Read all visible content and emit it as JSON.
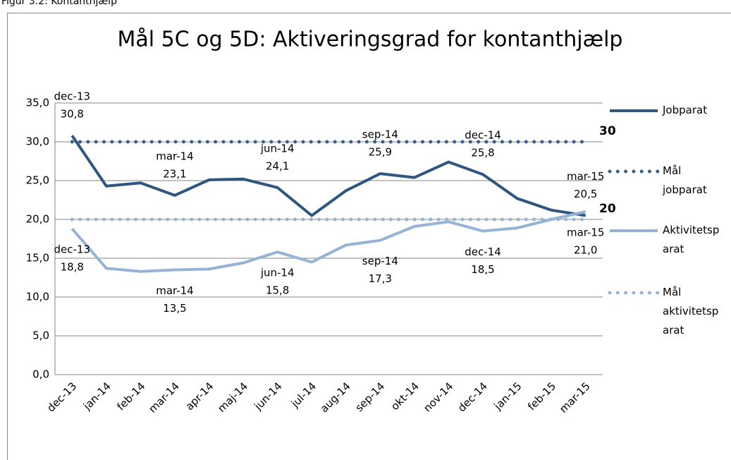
{
  "chart_data": {
    "type": "line",
    "caption": "Figur 3.2: Kontanthjælp",
    "title": "Mål 5C og 5D: Aktiveringsgrad for kontanthjælp",
    "categories": [
      "dec-13",
      "jan-14",
      "feb-14",
      "mar-14",
      "apr-14",
      "maj-14",
      "jun-14",
      "jul-14",
      "aug-14",
      "sep-14",
      "okt-14",
      "nov-14",
      "dec-14",
      "jan-15",
      "feb-15",
      "mar-15"
    ],
    "series": [
      {
        "name": "Jobparat",
        "color": "#2f5680",
        "style": "solid",
        "values": [
          30.8,
          24.3,
          24.7,
          23.1,
          25.1,
          25.2,
          24.1,
          20.5,
          23.7,
          25.9,
          25.4,
          27.4,
          25.8,
          22.7,
          21.2,
          20.5
        ],
        "value_labels": [
          "30,8",
          null,
          null,
          "23,1",
          null,
          null,
          "24,1",
          null,
          null,
          "25,9",
          null,
          null,
          "25,8",
          null,
          null,
          "20,5"
        ]
      },
      {
        "name": "Mål jobparat",
        "color": "#375f8c",
        "style": "dotted",
        "values": [
          30,
          30,
          30,
          30,
          30,
          30,
          30,
          30,
          30,
          30,
          30,
          30,
          30,
          30,
          30,
          30
        ]
      },
      {
        "name": "Aktivitetsparat",
        "color": "#95b3d7",
        "style": "solid",
        "values": [
          18.8,
          13.7,
          13.3,
          13.5,
          13.6,
          14.4,
          15.8,
          14.5,
          16.7,
          17.3,
          19.1,
          19.7,
          18.5,
          18.9,
          20.0,
          21.0
        ],
        "value_labels": [
          "18,8",
          null,
          null,
          "13,5",
          null,
          null,
          "15,8",
          null,
          null,
          "17,3",
          null,
          null,
          "18,5",
          null,
          null,
          "21,0"
        ]
      },
      {
        "name": "Mål aktivitetsparat",
        "color": "#95b3d7",
        "style": "dotted",
        "values": [
          20,
          20,
          20,
          20,
          20,
          20,
          20,
          20,
          20,
          20,
          20,
          20,
          20,
          20,
          20,
          20
        ]
      }
    ],
    "annotations": [
      {
        "text": "30",
        "value": 30
      },
      {
        "text": "20",
        "value": 20
      }
    ],
    "ylim": [
      0,
      35
    ],
    "yticks": [
      {
        "value": 0,
        "label": "0,0"
      },
      {
        "value": 5,
        "label": "5,0"
      },
      {
        "value": 10,
        "label": "10,0"
      },
      {
        "value": 15,
        "label": "15,0"
      },
      {
        "value": 20,
        "label": "20,0"
      },
      {
        "value": 25,
        "label": "25,0"
      },
      {
        "value": 30,
        "label": "30,0"
      },
      {
        "value": 35,
        "label": "35,0"
      }
    ],
    "grid": true,
    "legend": "right"
  }
}
